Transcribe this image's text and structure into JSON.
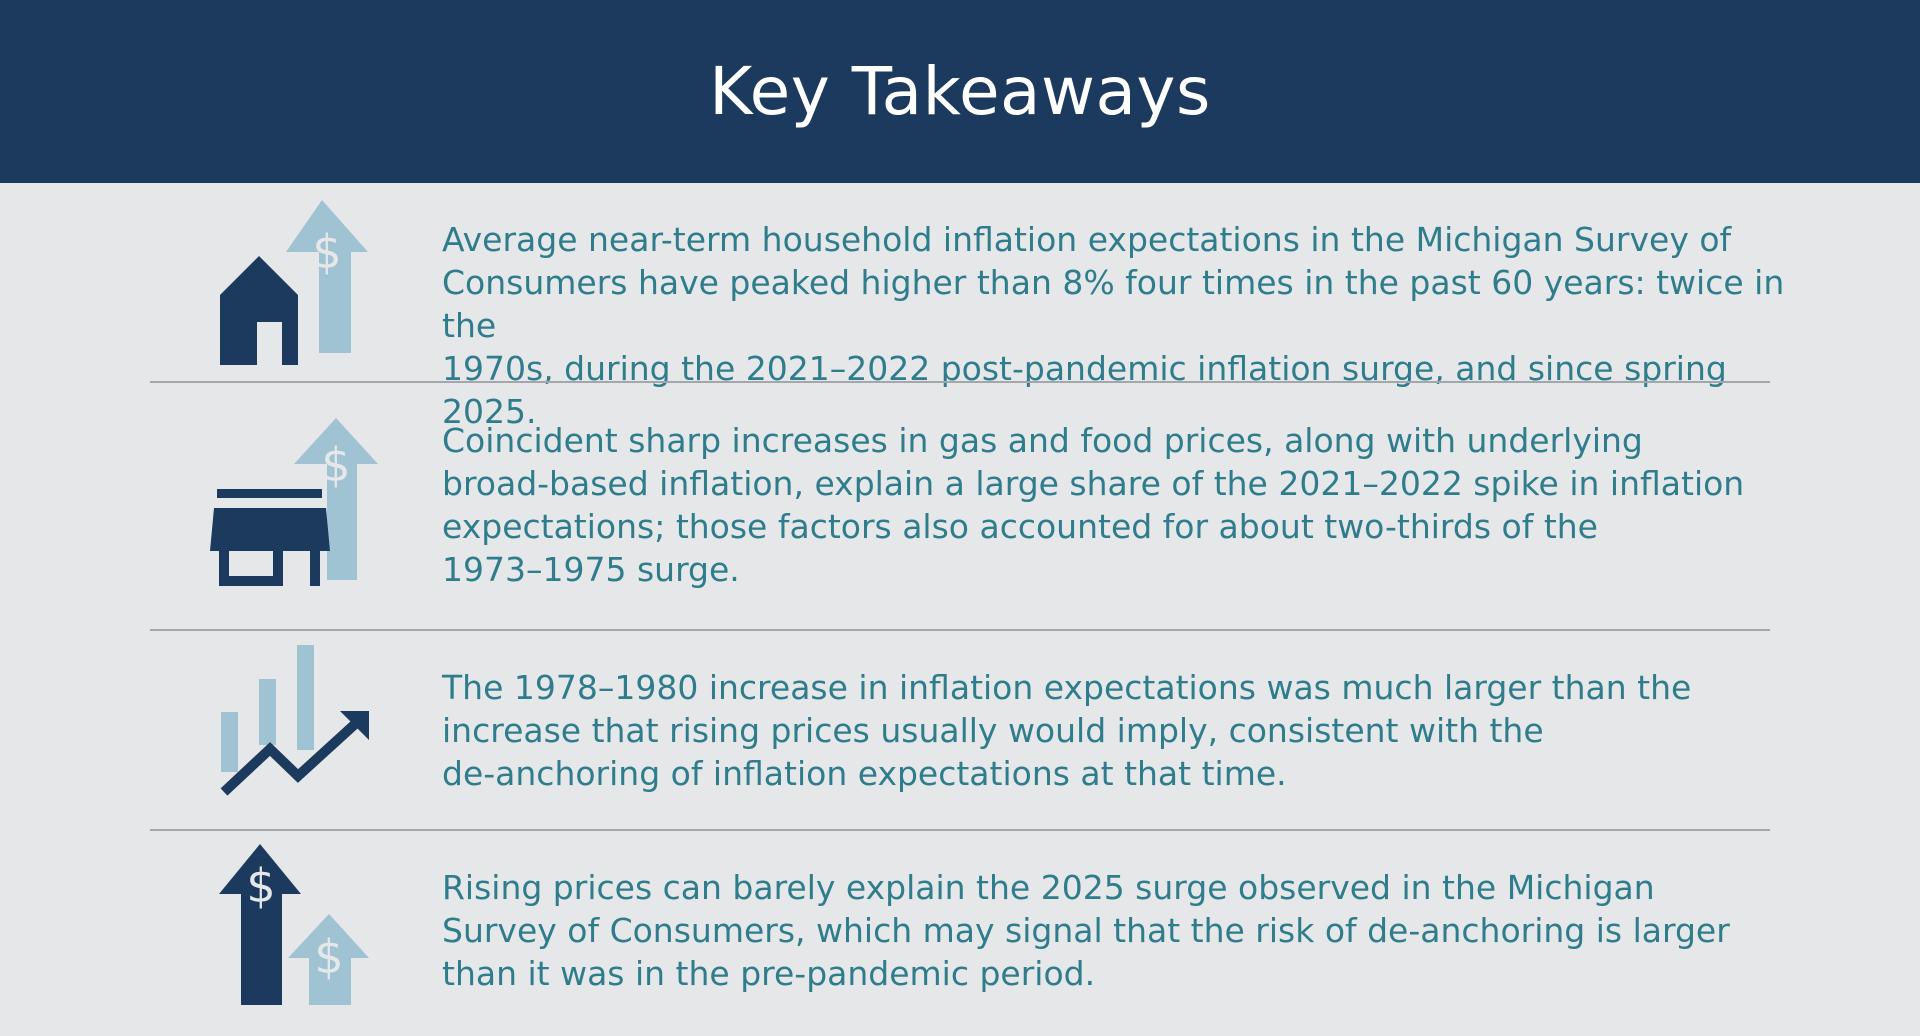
{
  "header": {
    "title": "Key Takeaways"
  },
  "colors": {
    "header_bg": "#1b3a5e",
    "page_bg": "#e6e7e9",
    "text": "#2f7d8c",
    "icon_dark": "#1b3a5e",
    "icon_light": "#9fc3d3",
    "divider": "#a3a6aa"
  },
  "takeaways": [
    {
      "icon": "house-with-rising-dollar-arrow-icon",
      "lines": [
        "Average near-term household inflation expectations in the Michigan Survey of",
        "Consumers have peaked higher than 8% four times in the past 60 years: twice in the",
        "1970s, during the 2021–2022 post-pandemic inflation surge, and since spring 2025."
      ]
    },
    {
      "icon": "storefront-with-rising-dollar-arrow-icon",
      "lines": [
        "Coincident sharp increases in gas and food prices, along with underlying",
        "broad-based inflation, explain a large share of the 2021–2022 spike in inflation",
        "expectations; those factors also accounted for about two-thirds of the",
        "1973–1975 surge."
      ]
    },
    {
      "icon": "bar-chart-with-trend-arrow-icon",
      "lines": [
        "The 1978–1980 increase in inflation expectations was much larger than the",
        "increase that rising prices usually would imply, consistent with the",
        "de-anchoring of inflation expectations at that time."
      ]
    },
    {
      "icon": "two-rising-dollar-arrows-icon",
      "lines": [
        "Rising prices can barely explain the 2025 surge observed in the Michigan",
        "Survey of Consumers, which may signal that the risk of de-anchoring is larger",
        "than it was in the pre-pandemic period."
      ]
    }
  ]
}
